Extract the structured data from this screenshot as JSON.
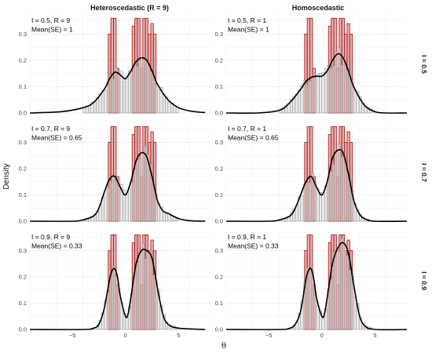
{
  "chart_data": {
    "type": "histogram-density-facet",
    "ylabel": "Density",
    "xlabel": "θ",
    "columns": [
      "Heteroscedastic (R = 9)",
      "Homoscedastic"
    ],
    "rows": [
      "I = 0.5",
      "I = 0.7",
      "I = 0.9"
    ],
    "xlim": [
      -9,
      8
    ],
    "ylim": [
      0,
      0.37
    ],
    "xticks": [
      -5,
      0,
      5
    ],
    "yticks": [
      0.0,
      0.1,
      0.2,
      0.3
    ],
    "grid": true,
    "colors": {
      "true_hist": "#b22222",
      "est_hist": "#dcdcdc",
      "density": "#000000"
    },
    "true_bars": {
      "x": [
        -1.5,
        -1.25,
        -1.0,
        -0.75,
        0.75,
        1.0,
        1.25,
        1.5,
        1.75,
        2.0,
        2.25,
        2.5,
        2.75
      ],
      "heights": [
        0.3,
        0.36,
        0.36,
        0.17,
        0.33,
        0.36,
        0.36,
        0.17,
        0.36,
        0.36,
        0.3,
        0.34,
        0.3
      ]
    },
    "panels": [
      {
        "row": 0,
        "col": 0,
        "annotation": [
          "I = 0.5, R = 9",
          "Mean(SE) = 1"
        ],
        "density": {
          "x": [
            -9,
            -6,
            -4,
            -3,
            -2,
            -1.5,
            -1,
            -0.5,
            0,
            0.5,
            1,
            1.5,
            2,
            2.5,
            3,
            4,
            5,
            6,
            7,
            7.5
          ],
          "y": [
            0.0,
            0.005,
            0.02,
            0.04,
            0.09,
            0.13,
            0.155,
            0.145,
            0.13,
            0.16,
            0.195,
            0.21,
            0.2,
            0.16,
            0.11,
            0.05,
            0.02,
            0.008,
            0.003,
            0.002
          ]
        }
      },
      {
        "row": 0,
        "col": 1,
        "annotation": [
          "I = 0.5, R = 1",
          "Mean(SE) = 1"
        ],
        "density": {
          "x": [
            -9,
            -6,
            -4,
            -3,
            -2,
            -1.5,
            -1,
            -0.5,
            0,
            0.5,
            1,
            1.5,
            2,
            2.5,
            3,
            4,
            5,
            6,
            8
          ],
          "y": [
            0.0,
            0.0,
            0.01,
            0.04,
            0.09,
            0.12,
            0.135,
            0.14,
            0.14,
            0.16,
            0.2,
            0.225,
            0.21,
            0.16,
            0.1,
            0.03,
            0.005,
            0.0,
            0.0
          ]
        }
      },
      {
        "row": 1,
        "col": 0,
        "annotation": [
          "I = 0.7, R = 9",
          "Mean(SE) = 0.65"
        ],
        "density": {
          "x": [
            -9,
            -5,
            -4,
            -3,
            -2.5,
            -2,
            -1.5,
            -1,
            -0.5,
            0,
            0.5,
            1,
            1.5,
            2,
            2.5,
            3,
            3.5,
            4,
            5,
            6,
            7.5
          ],
          "y": [
            0.0,
            0.0,
            0.005,
            0.02,
            0.05,
            0.11,
            0.16,
            0.17,
            0.13,
            0.1,
            0.15,
            0.23,
            0.26,
            0.245,
            0.17,
            0.08,
            0.04,
            0.03,
            0.01,
            0.002,
            0.0
          ]
        }
      },
      {
        "row": 1,
        "col": 1,
        "annotation": [
          "I = 0.7, R = 1",
          "Mean(SE) = 0.65"
        ],
        "density": {
          "x": [
            -9,
            -5,
            -4,
            -3,
            -2.5,
            -2,
            -1.5,
            -1,
            -0.5,
            0,
            0.5,
            1,
            1.5,
            2,
            2.5,
            3,
            3.5,
            4,
            5,
            8
          ],
          "y": [
            0.0,
            0.0,
            0.005,
            0.02,
            0.05,
            0.1,
            0.15,
            0.17,
            0.13,
            0.1,
            0.15,
            0.24,
            0.27,
            0.26,
            0.18,
            0.08,
            0.03,
            0.01,
            0.0,
            0.0
          ]
        }
      },
      {
        "row": 2,
        "col": 0,
        "annotation": [
          "I = 0.9, R = 9",
          "Mean(SE) = 0.33"
        ],
        "density": {
          "x": [
            -9,
            -4,
            -3,
            -2.5,
            -2,
            -1.5,
            -1.25,
            -1,
            -0.75,
            -0.5,
            0,
            0.25,
            0.5,
            1,
            1.5,
            2,
            2.5,
            3,
            3.5,
            4,
            5,
            7.5
          ],
          "y": [
            0.0,
            0.0,
            0.005,
            0.02,
            0.08,
            0.19,
            0.225,
            0.23,
            0.2,
            0.13,
            0.05,
            0.06,
            0.12,
            0.25,
            0.3,
            0.3,
            0.27,
            0.16,
            0.06,
            0.02,
            0.005,
            0.0
          ]
        }
      },
      {
        "row": 2,
        "col": 1,
        "annotation": [
          "I = 0.9, R = 1",
          "Mean(SE) = 0.33"
        ],
        "density": {
          "x": [
            -9,
            -4,
            -3,
            -2.5,
            -2,
            -1.5,
            -1.25,
            -1,
            -0.75,
            -0.5,
            0,
            0.25,
            0.5,
            1,
            1.5,
            2,
            2.5,
            3,
            3.5,
            4,
            5,
            8
          ],
          "y": [
            0.0,
            0.0,
            0.005,
            0.02,
            0.07,
            0.19,
            0.225,
            0.23,
            0.19,
            0.12,
            0.05,
            0.06,
            0.12,
            0.25,
            0.31,
            0.33,
            0.29,
            0.17,
            0.06,
            0.015,
            0.0,
            0.0
          ]
        }
      }
    ]
  }
}
